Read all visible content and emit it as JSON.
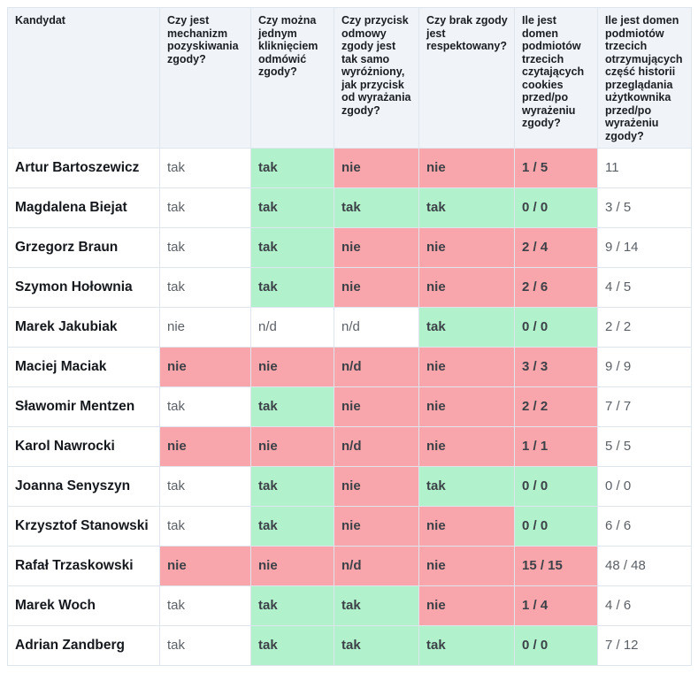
{
  "colors": {
    "good_bg": "#b1f1cb",
    "bad_bg": "#f8a6ab",
    "header_bg": "#f0f4f8",
    "border": "#dfe5ec"
  },
  "table": {
    "columns": [
      {
        "label": "Kandydat"
      },
      {
        "label": "Czy jest mechanizm pozyskiwania zgody?"
      },
      {
        "label": "Czy można jednym kliknięciem odmówić zgody?"
      },
      {
        "label": "Czy przycisk odmowy zgody jest tak samo wyróżniony, jak przycisk od wyrażania zgody?"
      },
      {
        "label": "Czy brak zgody jest respektowany?"
      },
      {
        "label": "Ile jest domen podmiotów trzecich czytających cookies przed/po wyrażeniu zgody?"
      },
      {
        "label": "Ile jest domen podmiotów trzecich otrzymujących część historii przeglądania użytkownika przed/po wyrażeniu zgody?"
      }
    ],
    "rows": [
      {
        "name": "Artur Bartoszewicz",
        "cells": [
          {
            "text": "tak",
            "status": "plain"
          },
          {
            "text": "tak",
            "status": "good"
          },
          {
            "text": "nie",
            "status": "bad"
          },
          {
            "text": "nie",
            "status": "bad"
          },
          {
            "text": "1 / 5",
            "status": "bad"
          },
          {
            "text": "11",
            "status": "plain"
          }
        ]
      },
      {
        "name": "Magdalena Biejat",
        "cells": [
          {
            "text": "tak",
            "status": "plain"
          },
          {
            "text": "tak",
            "status": "good"
          },
          {
            "text": "tak",
            "status": "good"
          },
          {
            "text": "tak",
            "status": "good"
          },
          {
            "text": "0 / 0",
            "status": "good"
          },
          {
            "text": "3 / 5",
            "status": "plain"
          }
        ]
      },
      {
        "name": "Grzegorz Braun",
        "cells": [
          {
            "text": "tak",
            "status": "plain"
          },
          {
            "text": "tak",
            "status": "good"
          },
          {
            "text": "nie",
            "status": "bad"
          },
          {
            "text": "nie",
            "status": "bad"
          },
          {
            "text": "2 / 4",
            "status": "bad"
          },
          {
            "text": "9 / 14",
            "status": "plain"
          }
        ]
      },
      {
        "name": "Szymon Hołownia",
        "cells": [
          {
            "text": "tak",
            "status": "plain"
          },
          {
            "text": "tak",
            "status": "good"
          },
          {
            "text": "nie",
            "status": "bad"
          },
          {
            "text": "nie",
            "status": "bad"
          },
          {
            "text": "2 / 6",
            "status": "bad"
          },
          {
            "text": "4 / 5",
            "status": "plain"
          }
        ]
      },
      {
        "name": "Marek Jakubiak",
        "cells": [
          {
            "text": "nie",
            "status": "plain"
          },
          {
            "text": "n/d",
            "status": "plain"
          },
          {
            "text": "n/d",
            "status": "plain"
          },
          {
            "text": "tak",
            "status": "good"
          },
          {
            "text": "0 / 0",
            "status": "good"
          },
          {
            "text": "2 / 2",
            "status": "plain"
          }
        ]
      },
      {
        "name": "Maciej Maciak",
        "cells": [
          {
            "text": "nie",
            "status": "bad"
          },
          {
            "text": "nie",
            "status": "bad"
          },
          {
            "text": "n/d",
            "status": "bad"
          },
          {
            "text": "nie",
            "status": "bad"
          },
          {
            "text": "3 / 3",
            "status": "bad"
          },
          {
            "text": "9 / 9",
            "status": "plain"
          }
        ]
      },
      {
        "name": "Sławomir Mentzen",
        "cells": [
          {
            "text": "tak",
            "status": "plain"
          },
          {
            "text": "tak",
            "status": "good"
          },
          {
            "text": "nie",
            "status": "bad"
          },
          {
            "text": "nie",
            "status": "bad"
          },
          {
            "text": "2 / 2",
            "status": "bad"
          },
          {
            "text": "7 / 7",
            "status": "plain"
          }
        ]
      },
      {
        "name": "Karol Nawrocki",
        "cells": [
          {
            "text": "nie",
            "status": "bad"
          },
          {
            "text": "nie",
            "status": "bad"
          },
          {
            "text": "n/d",
            "status": "bad"
          },
          {
            "text": "nie",
            "status": "bad"
          },
          {
            "text": "1 / 1",
            "status": "bad"
          },
          {
            "text": "5 / 5",
            "status": "plain"
          }
        ]
      },
      {
        "name": "Joanna Senyszyn",
        "cells": [
          {
            "text": "tak",
            "status": "plain"
          },
          {
            "text": "tak",
            "status": "good"
          },
          {
            "text": "nie",
            "status": "bad"
          },
          {
            "text": "tak",
            "status": "good"
          },
          {
            "text": "0 / 0",
            "status": "good"
          },
          {
            "text": "0 / 0",
            "status": "plain"
          }
        ]
      },
      {
        "name": "Krzysztof Stanowski",
        "cells": [
          {
            "text": "tak",
            "status": "plain"
          },
          {
            "text": "tak",
            "status": "good"
          },
          {
            "text": "nie",
            "status": "bad"
          },
          {
            "text": "nie",
            "status": "bad"
          },
          {
            "text": "0 / 0",
            "status": "good"
          },
          {
            "text": "6 / 6",
            "status": "plain"
          }
        ]
      },
      {
        "name": "Rafał Trzaskowski",
        "cells": [
          {
            "text": "nie",
            "status": "bad"
          },
          {
            "text": "nie",
            "status": "bad"
          },
          {
            "text": "n/d",
            "status": "bad"
          },
          {
            "text": "nie",
            "status": "bad"
          },
          {
            "text": "15 / 15",
            "status": "bad"
          },
          {
            "text": "48 / 48",
            "status": "plain"
          }
        ]
      },
      {
        "name": "Marek Woch",
        "cells": [
          {
            "text": "tak",
            "status": "plain"
          },
          {
            "text": "tak",
            "status": "good"
          },
          {
            "text": "tak",
            "status": "good"
          },
          {
            "text": "nie",
            "status": "bad"
          },
          {
            "text": "1 / 4",
            "status": "bad"
          },
          {
            "text": "4 / 6",
            "status": "plain"
          }
        ]
      },
      {
        "name": "Adrian Zandberg",
        "cells": [
          {
            "text": "tak",
            "status": "plain"
          },
          {
            "text": "tak",
            "status": "good"
          },
          {
            "text": "tak",
            "status": "good"
          },
          {
            "text": "tak",
            "status": "good"
          },
          {
            "text": "0 / 0",
            "status": "good"
          },
          {
            "text": "7 / 12",
            "status": "plain"
          }
        ]
      }
    ]
  }
}
